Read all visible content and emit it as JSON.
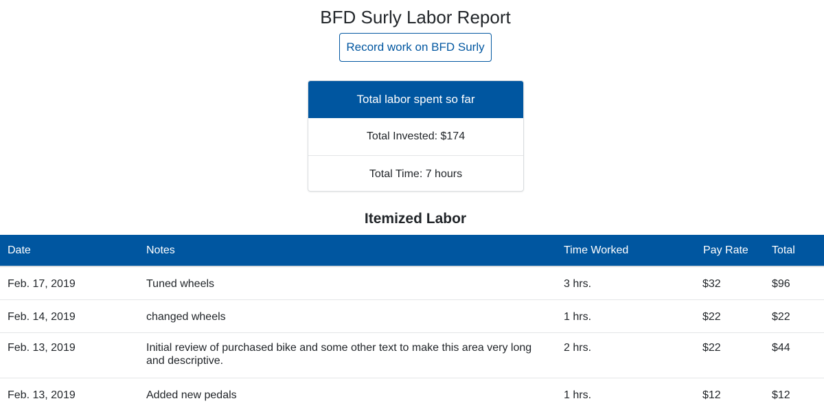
{
  "header": {
    "title": "BFD Surly Labor Report",
    "record_button_label": "Record work on BFD Surly"
  },
  "summary": {
    "heading": "Total labor spent so far",
    "total_invested": "Total Invested: $174",
    "total_time": "Total Time: 7 hours"
  },
  "itemized": {
    "title": "Itemized Labor",
    "columns": [
      "Date",
      "Notes",
      "Time Worked",
      "Pay Rate",
      "Total"
    ],
    "rows": [
      {
        "date": "Feb. 17, 2019",
        "notes": "Tuned wheels",
        "time": "3 hrs.",
        "rate": "$32",
        "total": "$96"
      },
      {
        "date": "Feb. 14, 2019",
        "notes": "changed wheels",
        "time": "1 hrs.",
        "rate": "$22",
        "total": "$22"
      },
      {
        "date": "Feb. 13, 2019",
        "notes": "Initial review of purchased bike and some other text to make this area very long and descriptive.",
        "time": "2 hrs.",
        "rate": "$22",
        "total": "$44"
      },
      {
        "date": "Feb. 13, 2019",
        "notes": "Added new pedals",
        "time": "1 hrs.",
        "rate": "$12",
        "total": "$12"
      }
    ]
  },
  "colors": {
    "primary": "#0056a0",
    "text": "#212529",
    "border": "#e3e5e7"
  }
}
